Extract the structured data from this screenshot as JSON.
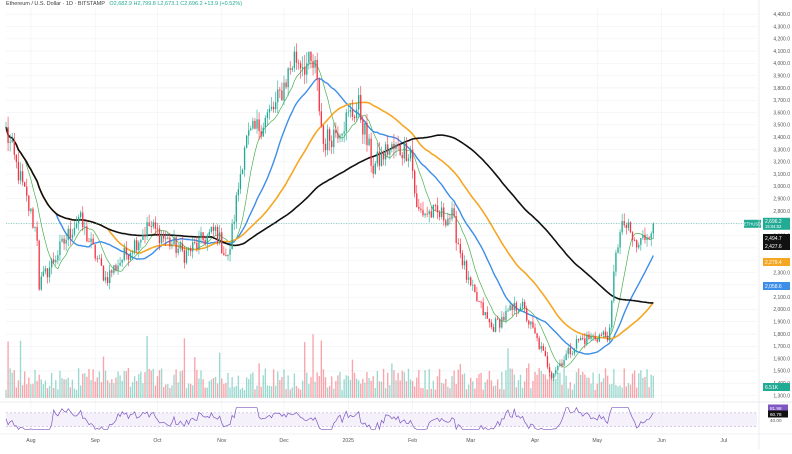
{
  "header": {
    "symbol": "Ethereum / U.S. Dollar · 1D · BITSTAMP",
    "ohlc": "O2,682.9  H2,799.8  L2,673.1  C2,696.2  +13.9 (+0.52%)"
  },
  "colors": {
    "up": "#22ab94",
    "down": "#f23645",
    "ma_fast": "#4caf50",
    "ma_blue": "#3d8ee8",
    "ma_orange": "#f5a623",
    "ma_black": "#111111",
    "rsi": "#7e57c2",
    "grid": "#eef0f3"
  },
  "chart_data": [
    {
      "type": "line",
      "subtype": "candlestick",
      "title": "Ethereum / U.S. Dollar · 1D · BITSTAMP",
      "x_ticks": [
        "Aug",
        "Sep",
        "Oct",
        "Nov",
        "Dec",
        "2025",
        "Feb",
        "Mar",
        "Apr",
        "May",
        "Jun",
        "Jul"
      ],
      "y_ticks": [
        "4,400.0",
        "4,300.0",
        "4,200.0",
        "4,100.0",
        "4,000.0",
        "3,900.0",
        "3,800.0",
        "3,700.0",
        "3,600.0",
        "3,500.0",
        "3,400.0",
        "3,300.0",
        "3,200.0",
        "3,100.0",
        "3,000.0",
        "2,900.0",
        "2,800.0",
        "2,700.0",
        "2,600.0",
        "2,500.0",
        "2,400.0",
        "2,300.0",
        "2,200.0",
        "2,100.0",
        "2,000.0",
        "1,900.0",
        "1,800.0",
        "1,700.0",
        "1,600.0",
        "1,500.0",
        "1,400.0",
        "1,300.0"
      ],
      "ylim": [
        1280,
        4450
      ],
      "grid": true,
      "anchors": [
        {
          "date": "2024-07-20",
          "price": 3450
        },
        {
          "date": "2024-08-04",
          "price": 2600
        },
        {
          "date": "2024-08-05",
          "price": 2200
        },
        {
          "date": "2024-08-24",
          "price": 2750
        },
        {
          "date": "2024-09-06",
          "price": 2250
        },
        {
          "date": "2024-09-27",
          "price": 2680
        },
        {
          "date": "2024-10-14",
          "price": 2450
        },
        {
          "date": "2024-10-29",
          "price": 2640
        },
        {
          "date": "2024-11-04",
          "price": 2400
        },
        {
          "date": "2024-11-12",
          "price": 3350
        },
        {
          "date": "2024-11-27",
          "price": 3650
        },
        {
          "date": "2024-12-06",
          "price": 4050
        },
        {
          "date": "2024-12-16",
          "price": 3950
        },
        {
          "date": "2024-12-20",
          "price": 3350
        },
        {
          "date": "2025-01-06",
          "price": 3650
        },
        {
          "date": "2025-01-13",
          "price": 3150
        },
        {
          "date": "2025-01-20",
          "price": 3300
        },
        {
          "date": "2025-01-31",
          "price": 3300
        },
        {
          "date": "2025-02-03",
          "price": 2800
        },
        {
          "date": "2025-02-20",
          "price": 2750
        },
        {
          "date": "2025-02-28",
          "price": 2200
        },
        {
          "date": "2025-03-11",
          "price": 1850
        },
        {
          "date": "2025-03-25",
          "price": 2050
        },
        {
          "date": "2025-04-09",
          "price": 1480
        },
        {
          "date": "2025-04-22",
          "price": 1750
        },
        {
          "date": "2025-05-07",
          "price": 1800
        },
        {
          "date": "2025-05-10",
          "price": 2500
        },
        {
          "date": "2025-05-14",
          "price": 2700
        },
        {
          "date": "2025-05-20",
          "price": 2500
        },
        {
          "date": "2025-05-28",
          "price": 2696
        }
      ],
      "price_labels": [
        {
          "text": "2,696.2",
          "sub": "15:04:52",
          "color": "#22ab94"
        },
        {
          "text": "2,494.7",
          "color": "#111111"
        },
        {
          "text": "2,427.6",
          "color": "#111111"
        },
        {
          "text": "2,279.4",
          "color": "#f5a623"
        },
        {
          "text": "2,058.6",
          "color": "#3d8ee8"
        }
      ],
      "current_price_tag": "ETHUSD",
      "volume_label": "6.51K",
      "ma_series": [
        {
          "kind": "fast",
          "color": "#4caf50"
        },
        {
          "kind": "blue",
          "color": "#3d8ee8"
        },
        {
          "kind": "orange",
          "color": "#f5a623"
        },
        {
          "kind": "black",
          "color": "#111111"
        }
      ]
    },
    {
      "type": "line",
      "subtype": "rsi",
      "y_ticks": [
        "81.98",
        "60.78",
        "40.00"
      ],
      "levels": [
        70,
        30
      ],
      "ylim": [
        20,
        90
      ]
    }
  ]
}
